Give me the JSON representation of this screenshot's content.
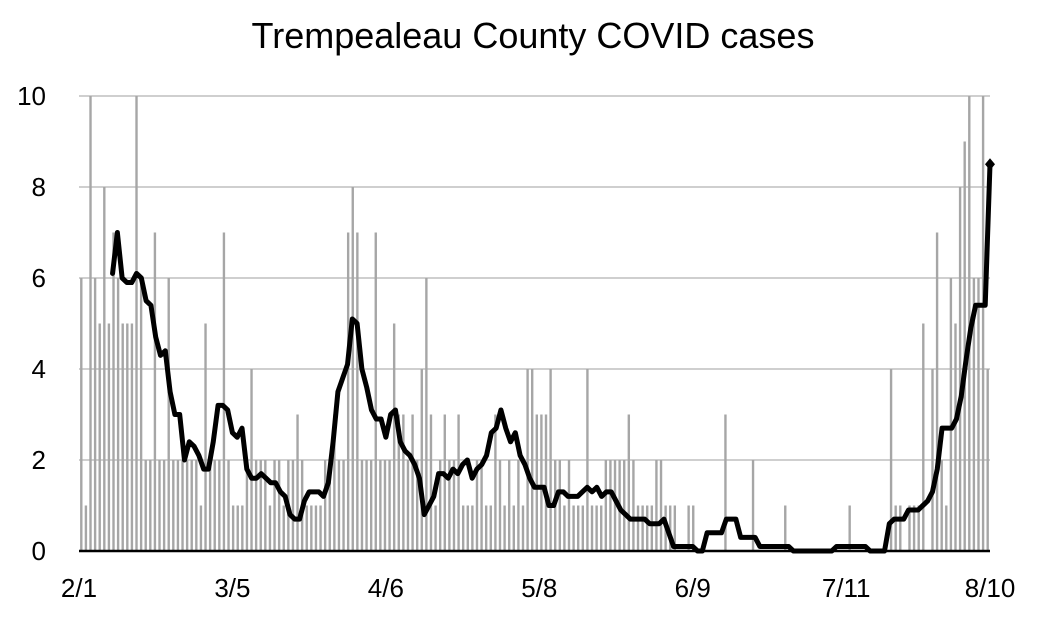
{
  "chart_data": {
    "type": "bar",
    "title": "Trempealeau County COVID cases",
    "xlabel": "",
    "ylabel": "",
    "ylim": [
      0,
      10
    ],
    "y_ticks": [
      "0",
      "2",
      "4",
      "6",
      "8",
      "10"
    ],
    "x_start": "2/1",
    "x_end": "8/10",
    "x_ticks": [
      {
        "label": "2/1",
        "day": 0
      },
      {
        "label": "3/5",
        "day": 32
      },
      {
        "label": "4/6",
        "day": 64
      },
      {
        "label": "5/8",
        "day": 96
      },
      {
        "label": "6/9",
        "day": 128
      },
      {
        "label": "7/11",
        "day": 160
      },
      {
        "label": "8/10",
        "day": 190
      }
    ],
    "grid": true,
    "colors": {
      "bars": "#a6a6a6",
      "line": "#000000",
      "grid": "#bfbfbf",
      "axis": "#000000"
    },
    "series": [
      {
        "type": "bar",
        "values": [
          6,
          1,
          10,
          6,
          5,
          8,
          5,
          7,
          6,
          5,
          5,
          5,
          10,
          6,
          2,
          2,
          7,
          2,
          2,
          6,
          2,
          2,
          2,
          2,
          2,
          2,
          1,
          5,
          2,
          2,
          2,
          7,
          2,
          1,
          1,
          1,
          2,
          4,
          2,
          2,
          2,
          1,
          2,
          2,
          1,
          2,
          2,
          3,
          2,
          1,
          1,
          1,
          1,
          2,
          2,
          3,
          2,
          2,
          7,
          8,
          7,
          2,
          2,
          2,
          7,
          2,
          2,
          2,
          5,
          3,
          3,
          2,
          3,
          2,
          4,
          6,
          3,
          1,
          2,
          3,
          2,
          2,
          3,
          1,
          1,
          1,
          2,
          2,
          1,
          1,
          3,
          2,
          1,
          2,
          1,
          2,
          1,
          4,
          4,
          3,
          3,
          3,
          4,
          2,
          2,
          1,
          2,
          1,
          1,
          1,
          4,
          1,
          1,
          1,
          2,
          2,
          2,
          2,
          2,
          3,
          2,
          1,
          1,
          1,
          1,
          2,
          2,
          1,
          1,
          1,
          0,
          0,
          1,
          1,
          0,
          0,
          0,
          0,
          0,
          0,
          3,
          0,
          0,
          0,
          0,
          0,
          2,
          0,
          0,
          0,
          0,
          0,
          0,
          1,
          0,
          0,
          0,
          0,
          0,
          0,
          0,
          0,
          0,
          0,
          0,
          0,
          0,
          1,
          0,
          0,
          0,
          0,
          0,
          0,
          0,
          0,
          4,
          1,
          1,
          0,
          1,
          1,
          1,
          5,
          0,
          4,
          7,
          2,
          1,
          6,
          5,
          8,
          9,
          10,
          6,
          6,
          10,
          4
        ]
      },
      {
        "type": "line",
        "start_day": 7,
        "values": [
          6.1,
          7.0,
          6.0,
          5.9,
          5.9,
          6.1,
          6.0,
          5.5,
          5.4,
          4.7,
          4.3,
          4.4,
          3.5,
          3.0,
          3.0,
          2.0,
          2.4,
          2.3,
          2.1,
          1.8,
          1.8,
          2.4,
          3.2,
          3.2,
          3.1,
          2.6,
          2.5,
          2.7,
          1.8,
          1.6,
          1.6,
          1.7,
          1.6,
          1.5,
          1.5,
          1.3,
          1.2,
          0.8,
          0.7,
          0.7,
          1.1,
          1.3,
          1.3,
          1.3,
          1.2,
          1.5,
          2.4,
          3.5,
          3.8,
          4.1,
          5.1,
          5.0,
          4.0,
          3.6,
          3.1,
          2.9,
          2.9,
          2.5,
          3.0,
          3.1,
          2.4,
          2.2,
          2.1,
          1.9,
          1.6,
          0.8,
          1.0,
          1.2,
          1.7,
          1.7,
          1.6,
          1.8,
          1.7,
          1.9,
          2.0,
          1.6,
          1.8,
          1.9,
          2.1,
          2.6,
          2.7,
          3.1,
          2.7,
          2.4,
          2.6,
          2.1,
          1.9,
          1.6,
          1.4,
          1.4,
          1.4,
          1.0,
          1.0,
          1.3,
          1.3,
          1.2,
          1.2,
          1.2,
          1.3,
          1.4,
          1.3,
          1.4,
          1.2,
          1.3,
          1.3,
          1.1,
          0.9,
          0.8,
          0.7,
          0.7,
          0.7,
          0.7,
          0.6,
          0.6,
          0.6,
          0.7,
          0.4,
          0.1,
          0.1,
          0.1,
          0.1,
          0.1,
          0.0,
          0.0,
          0.4,
          0.4,
          0.4,
          0.4,
          0.7,
          0.7,
          0.7,
          0.3,
          0.3,
          0.3,
          0.3,
          0.1,
          0.1,
          0.1,
          0.1,
          0.1,
          0.1,
          0.1,
          0.0,
          0.0,
          0.0,
          0.0,
          0.0,
          0.0,
          0.0,
          0.0,
          0.0,
          0.1,
          0.1,
          0.1,
          0.1,
          0.1,
          0.1,
          0.1,
          0.0,
          0.0,
          0.0,
          0.0,
          0.6,
          0.7,
          0.7,
          0.7,
          0.9,
          0.9,
          0.9,
          1.0,
          1.1,
          1.3,
          1.8,
          2.7,
          2.7,
          2.7,
          2.9,
          3.4,
          4.2,
          4.9,
          5.4,
          5.4,
          5.4,
          8.5
        ]
      }
    ]
  }
}
